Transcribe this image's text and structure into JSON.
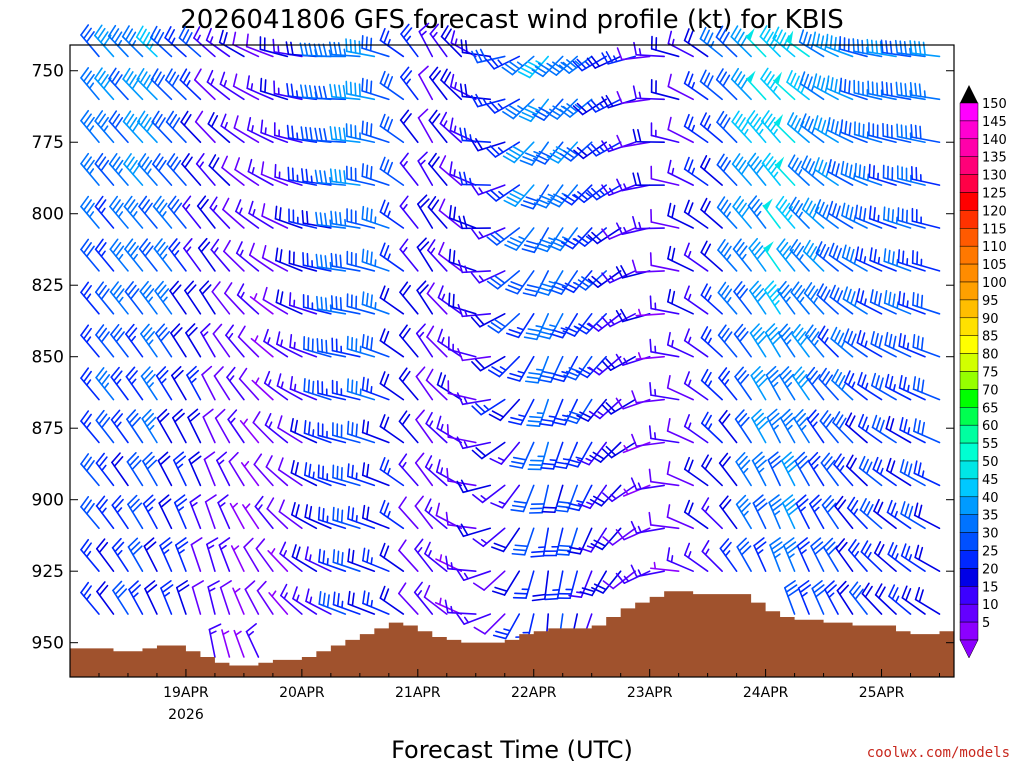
{
  "chart_data": {
    "type": "wind-barb-profile",
    "title": "2026041806 GFS forecast wind profile (kt) for KBIS",
    "xlabel": "Forecast Time (UTC)",
    "credit": "coolwx.com/models",
    "units": "kt",
    "ylim": [
      962,
      741
    ],
    "xlim_hours": [
      -6,
      177
    ],
    "yticks": [
      {
        "value": 750,
        "label": "750"
      },
      {
        "value": 775,
        "label": "775"
      },
      {
        "value": 800,
        "label": "800"
      },
      {
        "value": 825,
        "label": "825"
      },
      {
        "value": 850,
        "label": "850"
      },
      {
        "value": 875,
        "label": "875"
      },
      {
        "value": 900,
        "label": "900"
      },
      {
        "value": 925,
        "label": "925"
      },
      {
        "value": 950,
        "label": "950"
      }
    ],
    "xticks": [
      {
        "hour": 18,
        "label": "19APR",
        "sub": "2026"
      },
      {
        "hour": 42,
        "label": "20APR",
        "sub": ""
      },
      {
        "hour": 66,
        "label": "21APR",
        "sub": ""
      },
      {
        "hour": 90,
        "label": "22APR",
        "sub": ""
      },
      {
        "hour": 114,
        "label": "23APR",
        "sub": ""
      },
      {
        "hour": 138,
        "label": "24APR",
        "sub": ""
      },
      {
        "hour": 162,
        "label": "25APR",
        "sub": ""
      }
    ],
    "colorbar": {
      "labels": [
        "150",
        "145",
        "140",
        "135",
        "130",
        "125",
        "120",
        "115",
        "110",
        "105",
        "100",
        "95",
        "90",
        "85",
        "80",
        "75",
        "70",
        "65",
        "60",
        "55",
        "50",
        "45",
        "40",
        "35",
        "30",
        "25",
        "20",
        "15",
        "10",
        "5"
      ],
      "colors": [
        "#ff00ff",
        "#ff00d2",
        "#ff00aa",
        "#ff0078",
        "#ff0046",
        "#ff0000",
        "#ff3200",
        "#ff5a00",
        "#ff7800",
        "#ff8c00",
        "#ffa000",
        "#ffbe00",
        "#ffe100",
        "#ffff00",
        "#d2ff00",
        "#96ff00",
        "#00ff00",
        "#00ff50",
        "#00ffa0",
        "#00ffd2",
        "#00e6e6",
        "#00c8ff",
        "#009bff",
        "#0073ff",
        "#0050ff",
        "#0028ff",
        "#0000e6",
        "#3c00ff",
        "#6400ff",
        "#8c00ff"
      ],
      "top_color": "#000000",
      "bottom_color": "#8c00ff"
    },
    "terrain": {
      "color": "#a0522d",
      "hours": [
        -6,
        0,
        3,
        6,
        9,
        12,
        15,
        18,
        21,
        24,
        27,
        30,
        33,
        36,
        39,
        42,
        45,
        48,
        51,
        54,
        57,
        60,
        63,
        66,
        69,
        72,
        75,
        78,
        81,
        84,
        87,
        90,
        93,
        96,
        99,
        102,
        105,
        108,
        111,
        114,
        117,
        120,
        123,
        126,
        129,
        132,
        135,
        138,
        141,
        144,
        147,
        150,
        153,
        156,
        159,
        162,
        165,
        168,
        171,
        174,
        177
      ],
      "pressure": [
        952,
        952,
        953,
        953,
        952,
        951,
        951,
        953,
        955,
        957,
        958,
        958,
        957,
        956,
        956,
        955,
        953,
        951,
        949,
        947,
        945,
        943,
        944,
        946,
        948,
        949,
        950,
        950,
        950,
        949,
        947,
        946,
        945,
        945,
        945,
        944,
        941,
        938,
        936,
        934,
        932,
        932,
        933,
        933,
        933,
        933,
        936,
        939,
        941,
        942,
        942,
        943,
        943,
        944,
        944,
        944,
        946,
        947,
        947,
        946,
        948
      ]
    },
    "barbs": {
      "levels": [
        745,
        760,
        775,
        790,
        805,
        820,
        835,
        850,
        865,
        880,
        895,
        910,
        925,
        940,
        955
      ],
      "times_step_hours": 3,
      "nodes": [
        {
          "hour": 0,
          "dir": 320,
          "spd": 30
        },
        {
          "hour": 12,
          "dir": 325,
          "spd": 35
        },
        {
          "hour": 24,
          "dir": 330,
          "spd": 15
        },
        {
          "hour": 36,
          "dir": 310,
          "spd": 10
        },
        {
          "hour": 45,
          "dir": 290,
          "spd": 20
        },
        {
          "hour": 52,
          "dir": 280,
          "spd": 35
        },
        {
          "hour": 60,
          "dir": 290,
          "spd": 30
        },
        {
          "hour": 68,
          "dir": 330,
          "spd": 15
        },
        {
          "hour": 76,
          "dir": 300,
          "spd": 15
        },
        {
          "hour": 84,
          "dir": 240,
          "spd": 20
        },
        {
          "hour": 92,
          "dir": 200,
          "spd": 35
        },
        {
          "hour": 100,
          "dir": 210,
          "spd": 30
        },
        {
          "hour": 108,
          "dir": 230,
          "spd": 20
        },
        {
          "hour": 116,
          "dir": 260,
          "spd": 12
        },
        {
          "hour": 124,
          "dir": 300,
          "spd": 15
        },
        {
          "hour": 132,
          "dir": 320,
          "spd": 30
        },
        {
          "hour": 140,
          "dir": 330,
          "spd": 45
        },
        {
          "hour": 150,
          "dir": 320,
          "spd": 35
        },
        {
          "hour": 162,
          "dir": 300,
          "spd": 30
        },
        {
          "hour": 174,
          "dir": 290,
          "spd": 30
        }
      ]
    }
  }
}
